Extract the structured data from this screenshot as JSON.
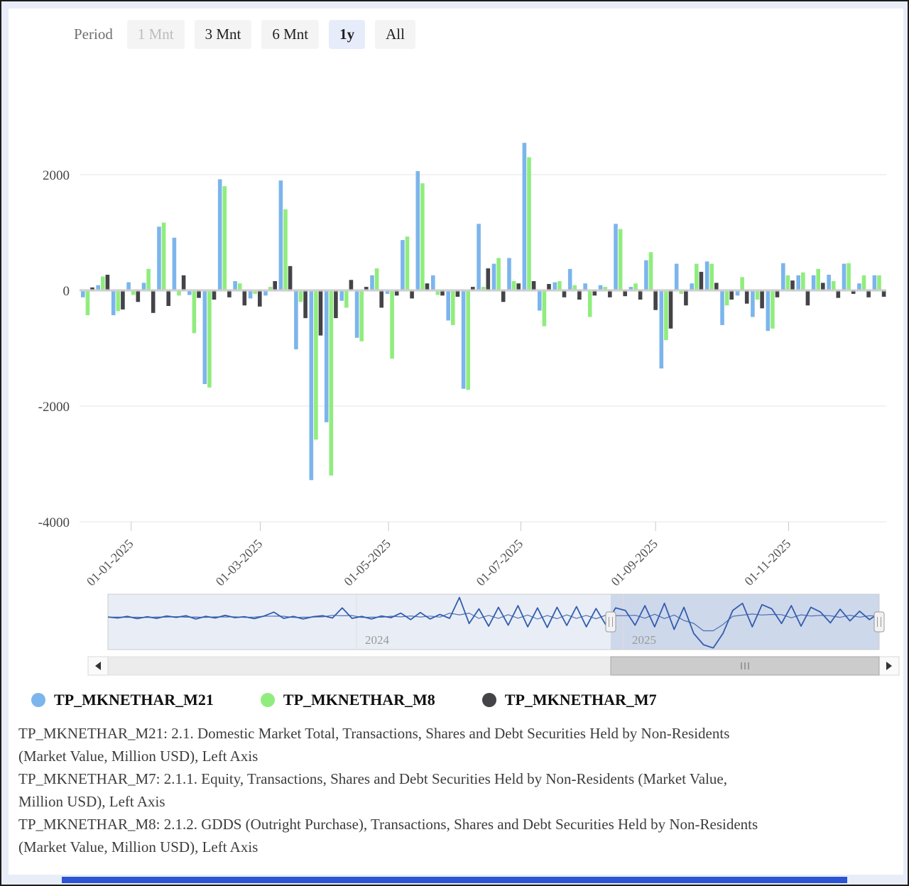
{
  "toolbar": {
    "period_label": "Period",
    "buttons": [
      {
        "label": "1 Mnt",
        "state": "disabled"
      },
      {
        "label": "3 Mnt",
        "state": "normal"
      },
      {
        "label": "6 Mnt",
        "state": "normal"
      },
      {
        "label": "1y",
        "state": "selected"
      },
      {
        "label": "All",
        "state": "normal"
      }
    ]
  },
  "chart_data": {
    "type": "bar",
    "title": "",
    "xlabel": "",
    "ylabel": "",
    "ylim": [
      -4000,
      2800
    ],
    "grid": true,
    "legend_position": "bottom",
    "y_ticks": [
      2000,
      0,
      -2000,
      -4000
    ],
    "x_tick_labels": [
      "01-01-2025",
      "01-03-2025",
      "01-05-2025",
      "01-07-2025",
      "01-09-2025",
      "01-11-2025"
    ],
    "series": [
      {
        "name": "TP_MKNETHAR_M21",
        "color": "#7cb5ec",
        "values": [
          -120,
          90,
          -430,
          140,
          130,
          1100,
          910,
          -80,
          -1620,
          1920,
          160,
          -140,
          -90,
          1900,
          -1020,
          -3280,
          -2280,
          -180,
          -820,
          260,
          -60,
          870,
          2060,
          260,
          -520,
          -1700,
          1150,
          460,
          560,
          2550,
          -350,
          140,
          370,
          120,
          90,
          1150,
          60,
          520,
          -1350,
          460,
          120,
          500,
          -600,
          -90,
          -460,
          -700,
          470,
          260,
          260,
          270,
          460,
          120,
          260
        ]
      },
      {
        "name": "TP_MKNETHAR_M8",
        "color": "#90ed7d",
        "values": [
          -430,
          240,
          -360,
          -80,
          370,
          1170,
          -90,
          -740,
          -1680,
          1800,
          120,
          -60,
          60,
          1400,
          -200,
          -2580,
          -3200,
          -300,
          -880,
          380,
          -1180,
          930,
          1850,
          -80,
          -600,
          -1720,
          60,
          560,
          160,
          2300,
          -620,
          160,
          90,
          -460,
          60,
          1060,
          120,
          660,
          -860,
          -60,
          460,
          460,
          -260,
          230,
          -160,
          -660,
          260,
          310,
          370,
          160,
          470,
          260,
          260
        ]
      },
      {
        "name": "TP_MKNETHAR_M7",
        "color": "#434348",
        "values": [
          50,
          270,
          -330,
          -200,
          -390,
          -270,
          260,
          -130,
          -160,
          -120,
          -260,
          -280,
          160,
          420,
          -480,
          -780,
          -480,
          180,
          60,
          -300,
          -90,
          -140,
          120,
          -90,
          -110,
          60,
          380,
          -200,
          120,
          160,
          110,
          -120,
          -160,
          -90,
          -120,
          -100,
          -160,
          -340,
          -660,
          -260,
          320,
          130,
          -160,
          -230,
          -310,
          -120,
          170,
          -260,
          130,
          -130,
          -60,
          -120,
          -110
        ]
      }
    ],
    "navigator": {
      "line_color": "#335cad",
      "year_labels": [
        "2024",
        "2025"
      ],
      "values": [
        0,
        -30,
        20,
        -50,
        10,
        -40,
        30,
        -10,
        40,
        -60,
        20,
        -30,
        50,
        -20,
        10,
        -50,
        30,
        150,
        -40,
        20,
        -60,
        10,
        40,
        -30,
        280,
        -40,
        20,
        -60,
        30,
        -20,
        120,
        -80,
        140,
        -60,
        80,
        -40,
        600,
        -200,
        250,
        -280,
        300,
        -250,
        350,
        -300,
        280,
        -320,
        300,
        -260,
        320,
        -300,
        260,
        -240,
        280,
        200,
        -250,
        350,
        -300,
        420,
        -380,
        300,
        -500,
        -850,
        -950,
        -500,
        200,
        420,
        -300,
        380,
        250,
        -200,
        350,
        -280,
        300,
        150,
        -180,
        240,
        -120,
        180,
        -80,
        120
      ]
    }
  },
  "legend": {
    "items": [
      {
        "label": "TP_MKNETHAR_M21",
        "color": "#7cb5ec"
      },
      {
        "label": "TP_MKNETHAR_M8",
        "color": "#90ed7d"
      },
      {
        "label": "TP_MKNETHAR_M7",
        "color": "#434348"
      }
    ]
  },
  "descriptions": [
    "TP_MKNETHAR_M21: 2.1. Domestic Market Total, Transactions, Shares and Debt Securities Held by Non-Residents (Market Value, Million USD), Left Axis",
    "TP_MKNETHAR_M7: 2.1.1. Equity, Transactions, Shares and Debt Securities Held by Non-Residents (Market Value, Million USD), Left Axis",
    "TP_MKNETHAR_M8: 2.1.2. GDDS (Outright Purchase), Transactions, Shares and Debt Securities Held by Non-Residents (Market Value, Million USD), Left Axis"
  ]
}
